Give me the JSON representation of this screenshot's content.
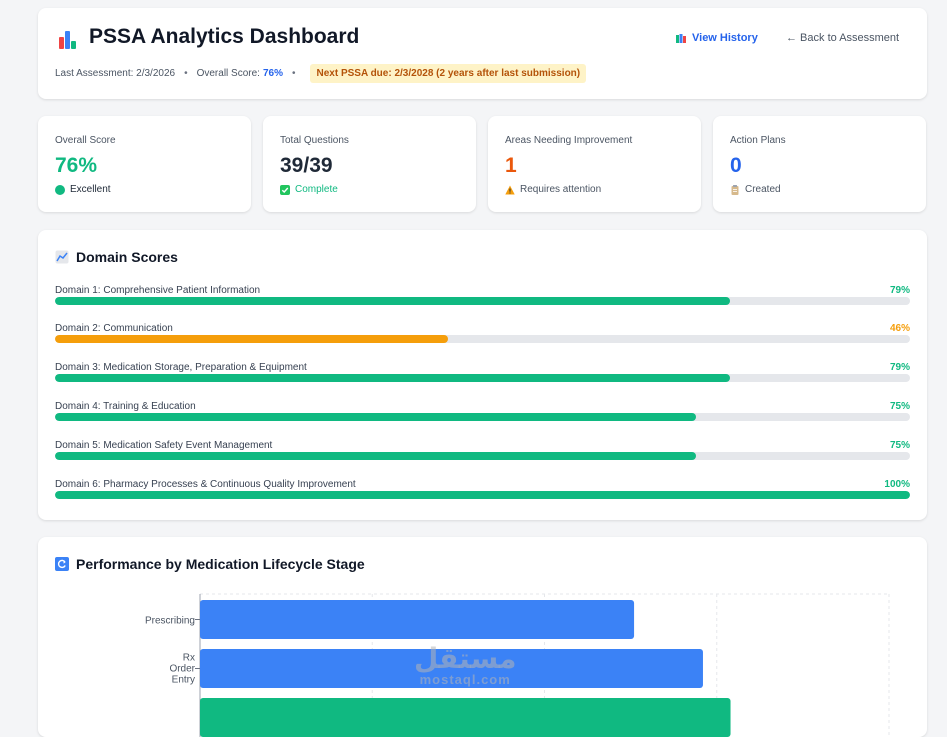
{
  "header": {
    "title": "PSSA Analytics Dashboard",
    "last_assessment": "Last Assessment: 2/3/2026",
    "overall_label": "Overall Score:",
    "overall_value": "76%",
    "due_badge": "Next PSSA due: 2/3/2028 (2 years after last submission)",
    "view_history": "View History",
    "back": "← Back to Assessment"
  },
  "stats": [
    {
      "label": "Overall Score",
      "value": "76%",
      "sub": "Excellent",
      "icon": "green-circle-icon",
      "color": "#10b981",
      "sub_color": "#1f2937"
    },
    {
      "label": "Total Questions",
      "value": "39/39",
      "sub": "Complete",
      "icon": "check-box-icon",
      "color": "#1f2937",
      "sub_color": "#10b981"
    },
    {
      "label": "Areas Needing Improvement",
      "value": "1",
      "sub": "Requires attention",
      "icon": "warning-icon",
      "color": "#ea580c",
      "sub_color": "#4b5563"
    },
    {
      "label": "Action Plans",
      "value": "0",
      "sub": "Created",
      "icon": "clipboard-icon",
      "color": "#2563eb",
      "sub_color": "#4b5563"
    }
  ],
  "domain_section": {
    "title": "Domain Scores",
    "items": [
      {
        "name": "Domain 1: Comprehensive Patient Information",
        "score": 79,
        "label": "79%",
        "color": "#10b981"
      },
      {
        "name": "Domain 2: Communication",
        "score": 46,
        "label": "46%",
        "color": "#f59e0b"
      },
      {
        "name": "Domain 3: Medication Storage, Preparation & Equipment",
        "score": 79,
        "label": "79%",
        "color": "#10b981"
      },
      {
        "name": "Domain 4: Training & Education",
        "score": 75,
        "label": "75%",
        "color": "#10b981"
      },
      {
        "name": "Domain 5: Medication Safety Event Management",
        "score": 75,
        "label": "75%",
        "color": "#10b981"
      },
      {
        "name": "Domain 6: Pharmacy Processes & Continuous Quality Improvement",
        "score": 100,
        "label": "100%",
        "color": "#10b981"
      }
    ]
  },
  "lifecycle_section": {
    "title": "Performance by Medication Lifecycle Stage"
  },
  "chart_data": {
    "type": "bar",
    "orientation": "horizontal",
    "categories": [
      "Prescribing",
      "Rx Order Entry"
    ],
    "values": [
      63,
      73
    ],
    "partial_third_bar_value": 77,
    "xlim": [
      0,
      100
    ],
    "grid": true,
    "colors": [
      "#3b82f6",
      "#3b82f6",
      "#10b981"
    ]
  },
  "watermark": {
    "line1": "مستقل",
    "line2": "mostaql.com"
  },
  "colors": {
    "accent": "#2563eb",
    "good": "#10b981",
    "warn": "#f59e0b",
    "alert": "#ea580c"
  }
}
